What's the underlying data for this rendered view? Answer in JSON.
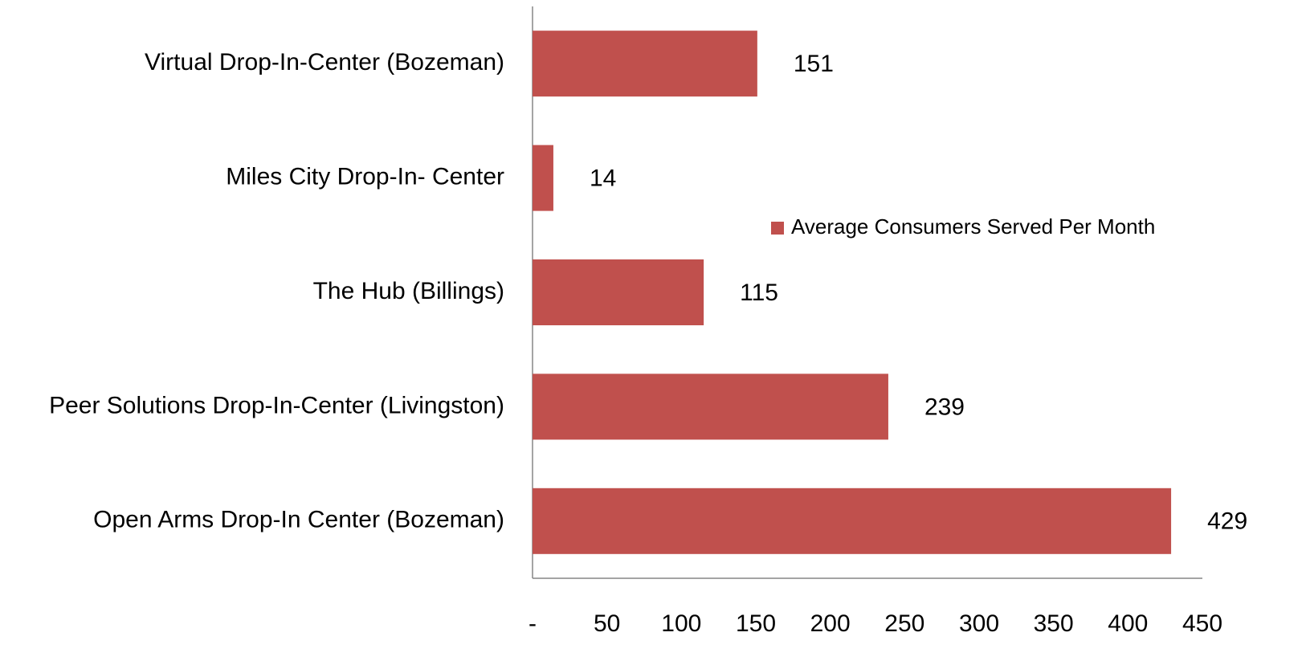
{
  "chart_data": {
    "type": "bar",
    "orientation": "horizontal",
    "categories": [
      "Virtual Drop-In-Center (Bozeman)",
      "Miles City Drop-In- Center",
      "The Hub (Billings)",
      "Peer Solutions Drop-In-Center (Livingston)",
      "Open Arms Drop-In Center (Bozeman)"
    ],
    "series": [
      {
        "name": "Average Consumers Served Per Month",
        "color": "#c0504d",
        "values": [
          151,
          14,
          115,
          239,
          429
        ]
      }
    ],
    "xlim": [
      0,
      450
    ],
    "xticks": [
      {
        "value": 0,
        "label": "-"
      },
      50,
      100,
      150,
      200,
      250,
      300,
      350,
      400,
      450
    ],
    "legend": "right",
    "grid": false
  }
}
